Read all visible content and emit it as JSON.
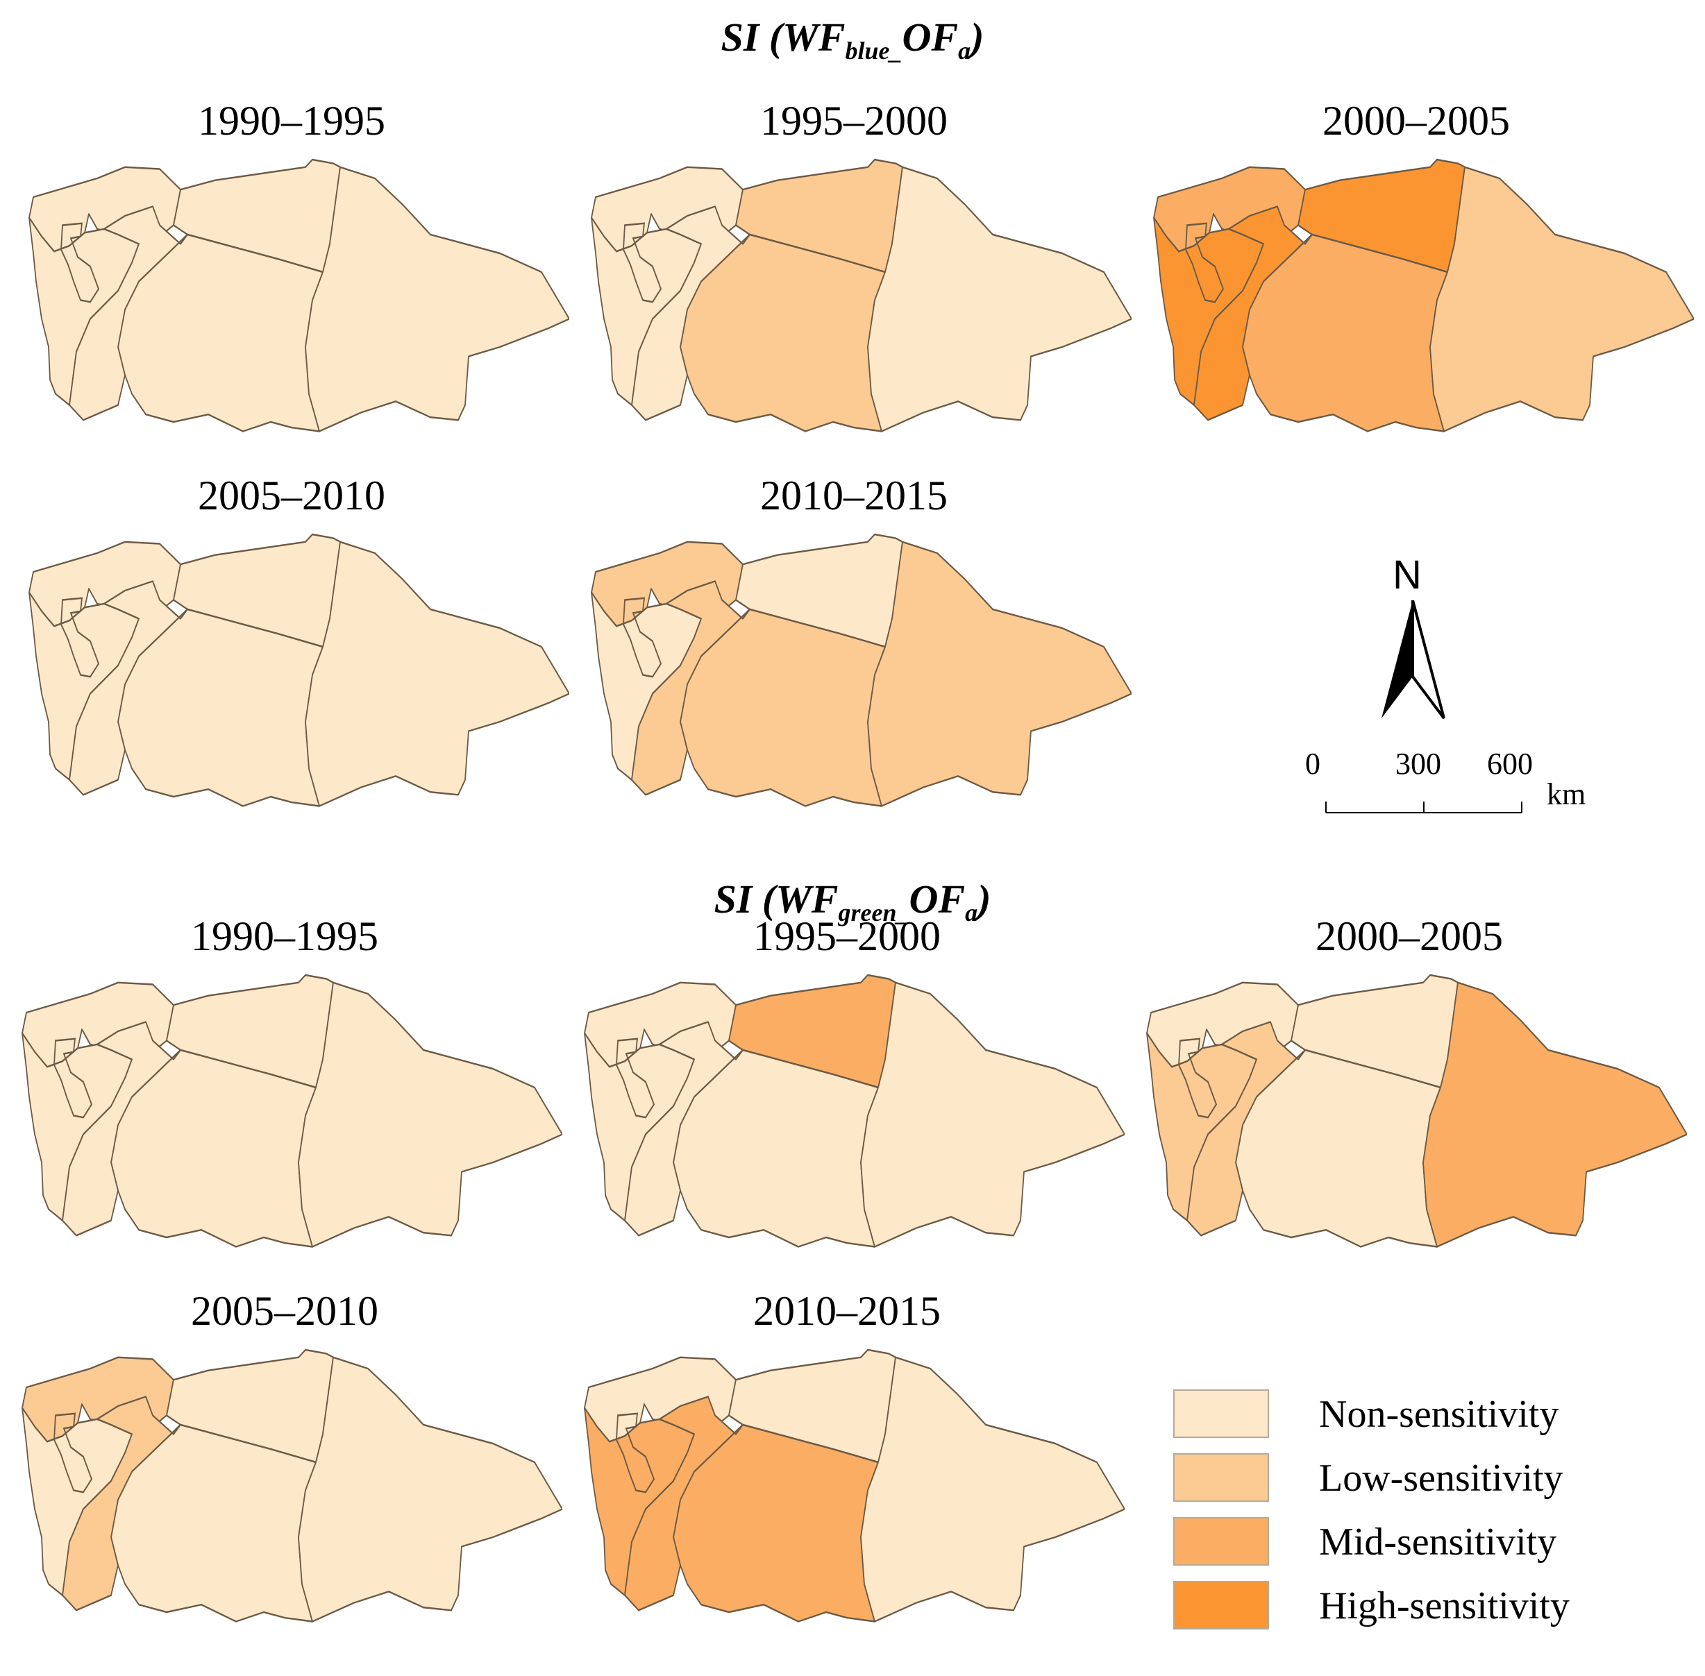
{
  "colors": {
    "non": "#fde8c9",
    "low": "#fcca93",
    "mid": "#fbad63",
    "high": "#fa9532"
  },
  "section1": {
    "title_prefix": "SI (WF",
    "title_sub": "blue_",
    "title_mid": "OF",
    "title_sub2": "a",
    "title_suffix": ")",
    "panels": [
      {
        "label": "1990–1995",
        "levels": [
          "non",
          "non",
          "non",
          "non",
          "non",
          "non"
        ]
      },
      {
        "label": "1995–2000",
        "levels": [
          "non",
          "non",
          "low",
          "low",
          "non",
          "non"
        ]
      },
      {
        "label": "2000–2005",
        "levels": [
          "mid",
          "high",
          "high",
          "mid",
          "low",
          "high"
        ]
      },
      {
        "label": "2005–2010",
        "levels": [
          "non",
          "non",
          "non",
          "non",
          "non",
          "non"
        ]
      },
      {
        "label": "2010–2015",
        "levels": [
          "low",
          "non",
          "non",
          "low",
          "low",
          "low"
        ]
      }
    ]
  },
  "section2": {
    "title_prefix": "SI (WF",
    "title_sub": "green_",
    "title_mid": "OF",
    "title_sub2": "a",
    "title_suffix": ")",
    "panels": [
      {
        "label": "1990–1995",
        "levels": [
          "non",
          "non",
          "non",
          "non",
          "non",
          "non"
        ]
      },
      {
        "label": "1995–2000",
        "levels": [
          "non",
          "non",
          "mid",
          "non",
          "non",
          "non"
        ]
      },
      {
        "label": "2000–2005",
        "levels": [
          "non",
          "low",
          "non",
          "non",
          "mid",
          "low"
        ]
      },
      {
        "label": "2005–2010",
        "levels": [
          "low",
          "non",
          "non",
          "non",
          "non",
          "low"
        ]
      },
      {
        "label": "2010–2015",
        "levels": [
          "non",
          "mid",
          "non",
          "mid",
          "non",
          "mid"
        ]
      }
    ]
  },
  "north_arrow": {
    "label": "N"
  },
  "scale_bar": {
    "ticks": [
      "0",
      "300",
      "600"
    ],
    "unit": "km"
  },
  "legend": {
    "items": [
      {
        "label": "Non-sensitivity",
        "level": "non"
      },
      {
        "label": "Low-sensitivity",
        "level": "low"
      },
      {
        "label": "Mid-sensitivity",
        "level": "mid"
      },
      {
        "label": "High-sensitivity",
        "level": "high"
      }
    ]
  }
}
